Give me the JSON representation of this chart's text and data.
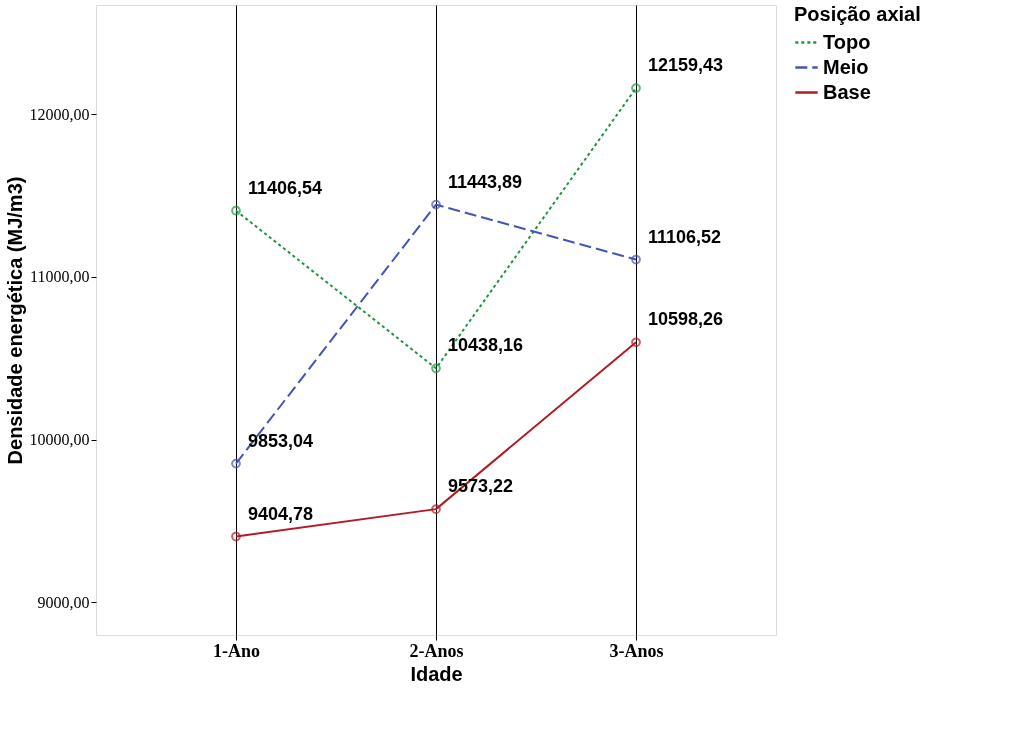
{
  "chart_data": {
    "type": "line",
    "xlabel": "Idade",
    "ylabel": "Densidade energética (MJ/m3)",
    "legend_title": "Posição axial",
    "categories": [
      "1-Ano",
      "2-Anos",
      "3-Anos"
    ],
    "series": [
      {
        "name": "Topo",
        "color": "#1a9641",
        "line_style": "dotted",
        "values": [
          11406.54,
          10438.16,
          12159.43
        ],
        "value_labels": [
          "11406,54",
          "10438,16",
          "12159,43"
        ]
      },
      {
        "name": "Meio",
        "color": "#4455b5",
        "line_style": "dashed",
        "values": [
          9853.04,
          11443.89,
          11106.52
        ],
        "value_labels": [
          "9853,04",
          "11443,89",
          "11106,52"
        ]
      },
      {
        "name": "Base",
        "color": "#b31b24",
        "line_style": "solid",
        "values": [
          9404.78,
          9573.22,
          10598.26
        ],
        "value_labels": [
          "9404,78",
          "9573,22",
          "10598,26"
        ]
      }
    ],
    "ylim": [
      8800,
      12670
    ],
    "yticks": [
      {
        "value": 9000,
        "label": "9000,00"
      },
      {
        "value": 10000,
        "label": "10000,00"
      },
      {
        "value": 11000,
        "label": "11000,00"
      },
      {
        "value": 12000,
        "label": "12000,00"
      }
    ],
    "grid": "x",
    "legend": "right",
    "marker": "circle"
  }
}
